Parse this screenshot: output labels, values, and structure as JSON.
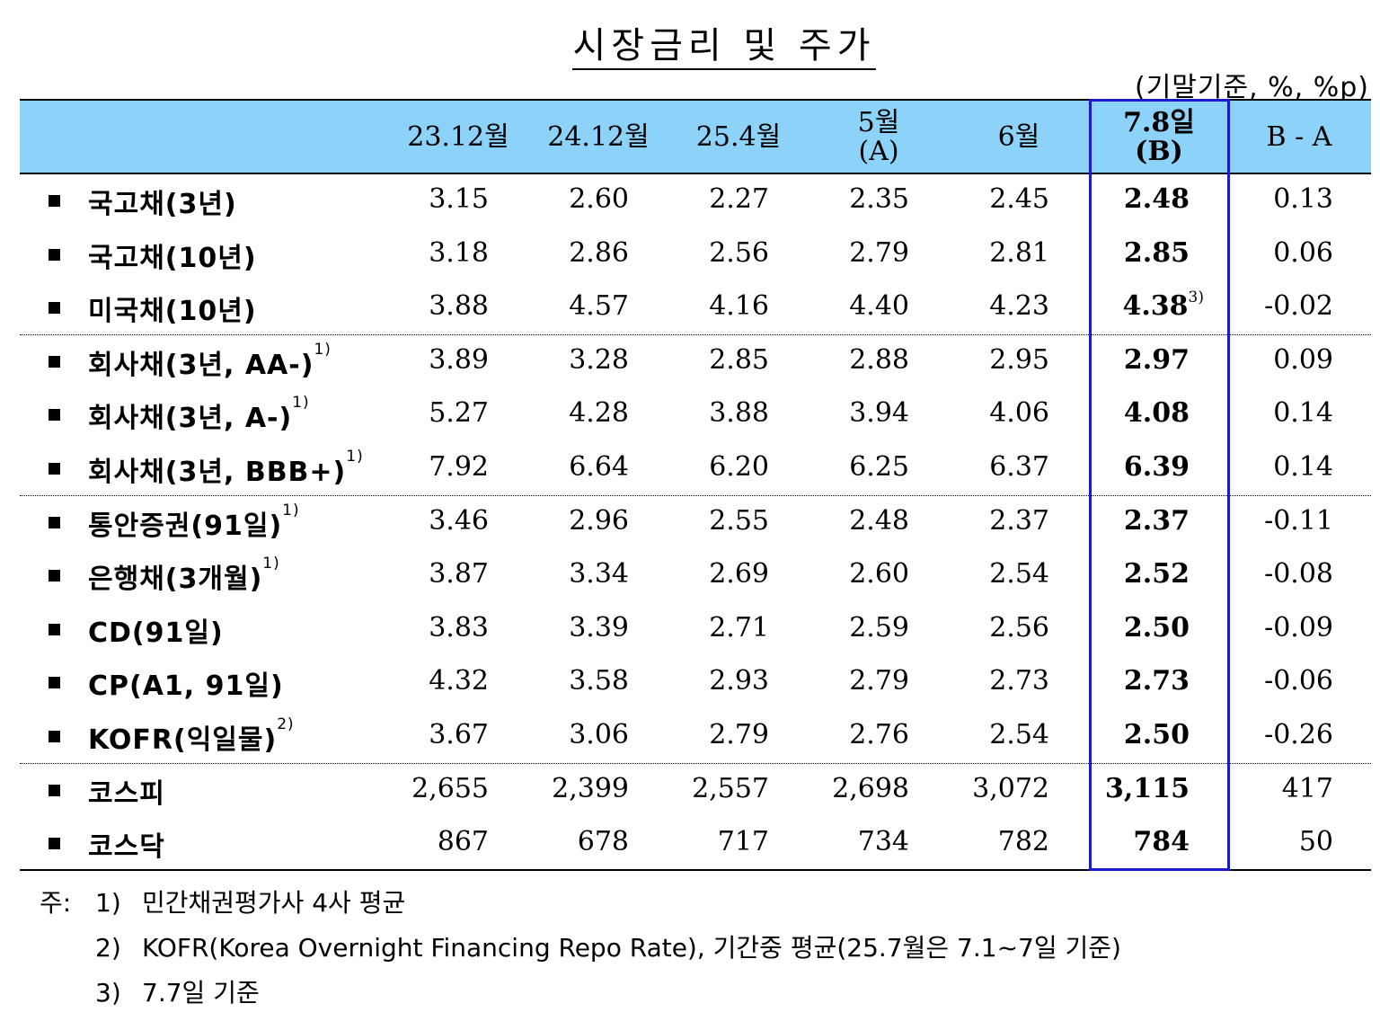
{
  "title": "시장금리 및 주가",
  "unit_note": "(기말기준, %, %p)",
  "header": {
    "col1": "23.12월",
    "col2": "24.12월",
    "col3": "25.4월",
    "col4_line1": "5월",
    "col4_line2": "(A)",
    "col5": "6월",
    "col6_line1": "7.8일",
    "col6_line2": "(B)",
    "col7": "B - A"
  },
  "colors": {
    "header_bg": "#8dd2f8",
    "highlight_border": "#1a1ad6"
  },
  "rows": [
    {
      "label": "국고채(3년)",
      "sup": "",
      "values": [
        "3.15",
        "2.60",
        "2.27",
        "2.35",
        "2.45",
        "2.48",
        "0.13"
      ],
      "b_sup": ""
    },
    {
      "label": "국고채(10년)",
      "sup": "",
      "values": [
        "3.18",
        "2.86",
        "2.56",
        "2.79",
        "2.81",
        "2.85",
        "0.06"
      ],
      "b_sup": ""
    },
    {
      "label": "미국채(10년)",
      "sup": "",
      "values": [
        "3.88",
        "4.57",
        "4.16",
        "4.40",
        "4.23",
        "4.38",
        "-0.02"
      ],
      "b_sup": "3)"
    },
    {
      "label": "회사채(3년, AA-)",
      "sup": "1)",
      "values": [
        "3.89",
        "3.28",
        "2.85",
        "2.88",
        "2.95",
        "2.97",
        "0.09"
      ],
      "b_sup": ""
    },
    {
      "label": "회사채(3년, A-)",
      "sup": "1)",
      "values": [
        "5.27",
        "4.28",
        "3.88",
        "3.94",
        "4.06",
        "4.08",
        "0.14"
      ],
      "b_sup": ""
    },
    {
      "label": "회사채(3년, BBB+)",
      "sup": "1)",
      "values": [
        "7.92",
        "6.64",
        "6.20",
        "6.25",
        "6.37",
        "6.39",
        "0.14"
      ],
      "b_sup": ""
    },
    {
      "label": "통안증권(91일)",
      "sup": "1)",
      "values": [
        "3.46",
        "2.96",
        "2.55",
        "2.48",
        "2.37",
        "2.37",
        "-0.11"
      ],
      "b_sup": ""
    },
    {
      "label": "은행채(3개월)",
      "sup": "1)",
      "values": [
        "3.87",
        "3.34",
        "2.69",
        "2.60",
        "2.54",
        "2.52",
        "-0.08"
      ],
      "b_sup": ""
    },
    {
      "label": "CD(91일)",
      "sup": "",
      "values": [
        "3.83",
        "3.39",
        "2.71",
        "2.59",
        "2.56",
        "2.50",
        "-0.09"
      ],
      "b_sup": ""
    },
    {
      "label": "CP(A1, 91일)",
      "sup": "",
      "values": [
        "4.32",
        "3.58",
        "2.93",
        "2.79",
        "2.73",
        "2.73",
        "-0.06"
      ],
      "b_sup": ""
    },
    {
      "label": "KOFR(익일물)",
      "sup": "2)",
      "values": [
        "3.67",
        "3.06",
        "2.79",
        "2.76",
        "2.54",
        "2.50",
        "-0.26"
      ],
      "b_sup": ""
    },
    {
      "label": "코스피",
      "sup": "",
      "values": [
        "2,655",
        "2,399",
        "2,557",
        "2,698",
        "3,072",
        "3,115",
        "417"
      ],
      "b_sup": ""
    },
    {
      "label": "코스닥",
      "sup": "",
      "values": [
        "867",
        "678",
        "717",
        "734",
        "782",
        "784",
        "50"
      ],
      "b_sup": ""
    }
  ],
  "notes": {
    "prefix": "주:",
    "n1_num": "1)",
    "n1_text": "민간채권평가사 4사 평균",
    "n2_num": "2)",
    "n2_text": "KOFR(Korea Overnight Financing Repo Rate), 기간중 평균(25.7월은 7.1~7일 기준)",
    "n3_num": "3)",
    "n3_text": "7.7일 기준"
  }
}
